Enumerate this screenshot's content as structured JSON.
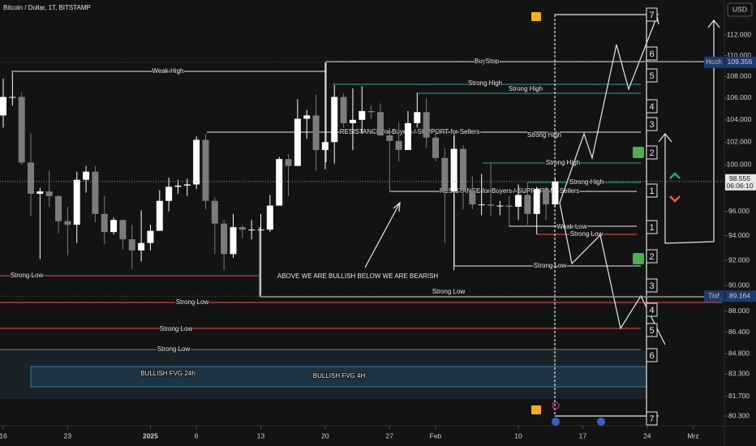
{
  "chart_data": {
    "type": "candlestick",
    "header": "Bitcoin / Dollar, 1T, BITSTAMP",
    "currency": "USD",
    "log_scale": true,
    "up_color": "#ffffff",
    "down_color": "#7c7c7c",
    "ylim": [
      79630,
      115470
    ],
    "yticks": [
      {
        "value": 112000,
        "label": "112.000"
      },
      {
        "value": 110000,
        "label": "110.000"
      },
      {
        "value": 108000,
        "label": "108.000"
      },
      {
        "value": 106000,
        "label": "106.000"
      },
      {
        "value": 104000,
        "label": "104.000"
      },
      {
        "value": 102000,
        "label": "102.000"
      },
      {
        "value": 100000,
        "label": "100.000"
      },
      {
        "value": 96000,
        "label": "96.000"
      },
      {
        "value": 94000,
        "label": "94.000"
      },
      {
        "value": 92000,
        "label": "92.000"
      },
      {
        "value": 90000,
        "label": "90.000"
      },
      {
        "value": 88000,
        "label": "88.000"
      },
      {
        "value": 86400,
        "label": "86.400"
      },
      {
        "value": 84800,
        "label": "84.800"
      },
      {
        "value": 83300,
        "label": "83.300"
      },
      {
        "value": 81700,
        "label": "81.700"
      },
      {
        "value": 80300,
        "label": "80.300"
      }
    ],
    "xticks": [
      {
        "value": "2024-12-16",
        "label": "16"
      },
      {
        "value": "2024-12-23",
        "label": "23"
      },
      {
        "value": "2025-01-01",
        "label": "2025"
      },
      {
        "value": "2025-01-06",
        "label": "6"
      },
      {
        "value": "2025-01-13",
        "label": "13"
      },
      {
        "value": "2025-01-20",
        "label": "20"
      },
      {
        "value": "2025-01-27",
        "label": "27"
      },
      {
        "value": "2025-02-01",
        "label": "Feb"
      },
      {
        "value": "2025-02-10",
        "label": "10"
      },
      {
        "value": "2025-02-17",
        "label": "17"
      },
      {
        "value": "2025-02-24",
        "label": "24"
      },
      {
        "value": "2025-03-01",
        "label": "Mrz"
      }
    ],
    "x": [
      "2024-12-16",
      "2024-12-17",
      "2024-12-18",
      "2024-12-19",
      "2024-12-20",
      "2024-12-21",
      "2024-12-22",
      "2024-12-23",
      "2024-12-24",
      "2024-12-25",
      "2024-12-26",
      "2024-12-27",
      "2024-12-28",
      "2024-12-29",
      "2024-12-30",
      "2024-12-31",
      "2025-01-01",
      "2025-01-02",
      "2025-01-03",
      "2025-01-04",
      "2025-01-05",
      "2025-01-06",
      "2025-01-07",
      "2025-01-08",
      "2025-01-09",
      "2025-01-10",
      "2025-01-11",
      "2025-01-12",
      "2025-01-13",
      "2025-01-14",
      "2025-01-15",
      "2025-01-16",
      "2025-01-17",
      "2025-01-18",
      "2025-01-19",
      "2025-01-20",
      "2025-01-21",
      "2025-01-22",
      "2025-01-23",
      "2025-01-24",
      "2025-01-25",
      "2025-01-26",
      "2025-01-27",
      "2025-01-28",
      "2025-01-29",
      "2025-01-30",
      "2025-01-31",
      "2025-02-01",
      "2025-02-02",
      "2025-02-03",
      "2025-02-04",
      "2025-02-05",
      "2025-02-06",
      "2025-02-07",
      "2025-02-08",
      "2025-02-09",
      "2025-02-10",
      "2025-02-11",
      "2025-02-12",
      "2025-02-13",
      "2025-02-14"
    ],
    "open": [
      104400,
      106100,
      106100,
      100200,
      97500,
      97700,
      97300,
      95200,
      94900,
      98700,
      99400,
      95800,
      94300,
      95300,
      93700,
      92800,
      93400,
      94400,
      96900,
      98100,
      98200,
      98300,
      102200,
      96900,
      95000,
      92500,
      94700,
      94500,
      94500,
      94500,
      96500,
      100500,
      99900,
      104100,
      104400,
      101300,
      102000,
      106100,
      103700,
      104000,
      104800,
      104700,
      102600,
      102100,
      101300,
      103700,
      104700,
      102400,
      100600,
      97700,
      101400,
      97800,
      96600,
      96600,
      96500,
      96500,
      96400,
      97400,
      95800,
      97900,
      96600
    ],
    "high": [
      107800,
      108400,
      106500,
      102800,
      98000,
      99500,
      97400,
      96400,
      99400,
      99900,
      99900,
      97300,
      95500,
      95200,
      94900,
      96100,
      94900,
      97800,
      98900,
      98700,
      98800,
      102500,
      102700,
      97200,
      95300,
      95800,
      94900,
      95300,
      95800,
      97400,
      100700,
      100900,
      105900,
      104900,
      106300,
      109400,
      107200,
      106400,
      106900,
      107100,
      105300,
      105500,
      103300,
      103800,
      104800,
      106500,
      106000,
      102800,
      101500,
      102500,
      101700,
      99000,
      99200,
      100100,
      96900,
      97300,
      98300,
      98500,
      98100,
      98100,
      98800
    ],
    "low": [
      103300,
      105300,
      100000,
      95600,
      92100,
      96400,
      94200,
      92400,
      93400,
      97600,
      95100,
      93300,
      94100,
      92900,
      91300,
      91900,
      92800,
      94400,
      96000,
      97500,
      97300,
      97900,
      96200,
      92500,
      91200,
      92200,
      93800,
      93700,
      89200,
      94300,
      96500,
      97300,
      99900,
      102300,
      99500,
      99600,
      100100,
      103300,
      101300,
      102800,
      104100,
      102500,
      97800,
      100300,
      101300,
      103300,
      101500,
      100300,
      93400,
      91200,
      96200,
      96200,
      95700,
      95600,
      95700,
      94700,
      95300,
      94900,
      94100,
      95300,
      96400
    ],
    "close": [
      106100,
      106100,
      100200,
      97500,
      97700,
      97300,
      95200,
      94900,
      98700,
      99400,
      95800,
      94300,
      95300,
      93700,
      92800,
      93400,
      94400,
      96900,
      98100,
      98200,
      98300,
      102200,
      96900,
      95000,
      92500,
      94700,
      94500,
      94500,
      94500,
      96500,
      100500,
      99900,
      104100,
      104400,
      101300,
      102000,
      106100,
      103700,
      104000,
      104800,
      104700,
      102600,
      102100,
      101300,
      103700,
      104700,
      102400,
      100600,
      97700,
      101400,
      97800,
      96600,
      96600,
      96500,
      96500,
      96400,
      97400,
      95800,
      97900,
      96600,
      98555
    ],
    "price_markers": [
      {
        "name": "Hoch",
        "value": 109356,
        "label": "109.356"
      },
      {
        "name": "Tief",
        "value": 89164,
        "label": "89.164"
      }
    ],
    "current": {
      "value": 98555,
      "label": "98.555",
      "countdown": "06:06:10"
    },
    "annotations": [
      "Weak High",
      "BuyStop",
      "Strong High",
      "Strong High",
      "Strong High",
      "RESISTANCE for Buyers / SUPPORT for Sellers",
      "Strong High",
      "Strong High",
      "RESISTANCE for Buyers / SUPPORT for Sellers",
      "Weak Low",
      "Strong Low",
      "Strong Low",
      "ABOVE WE ARE BULLISH BELOW WE ARE BEARISH",
      "Strong Low",
      "Strong Low",
      "Strong Low",
      "Strong Low",
      "Strong Low",
      "BULLISH FVG 24h",
      "BULLISH FVG 4H"
    ],
    "levels_up": [
      1,
      2,
      3,
      4,
      5,
      6,
      7
    ],
    "levels_down": [
      1,
      2,
      3,
      4,
      5,
      6,
      7
    ]
  }
}
